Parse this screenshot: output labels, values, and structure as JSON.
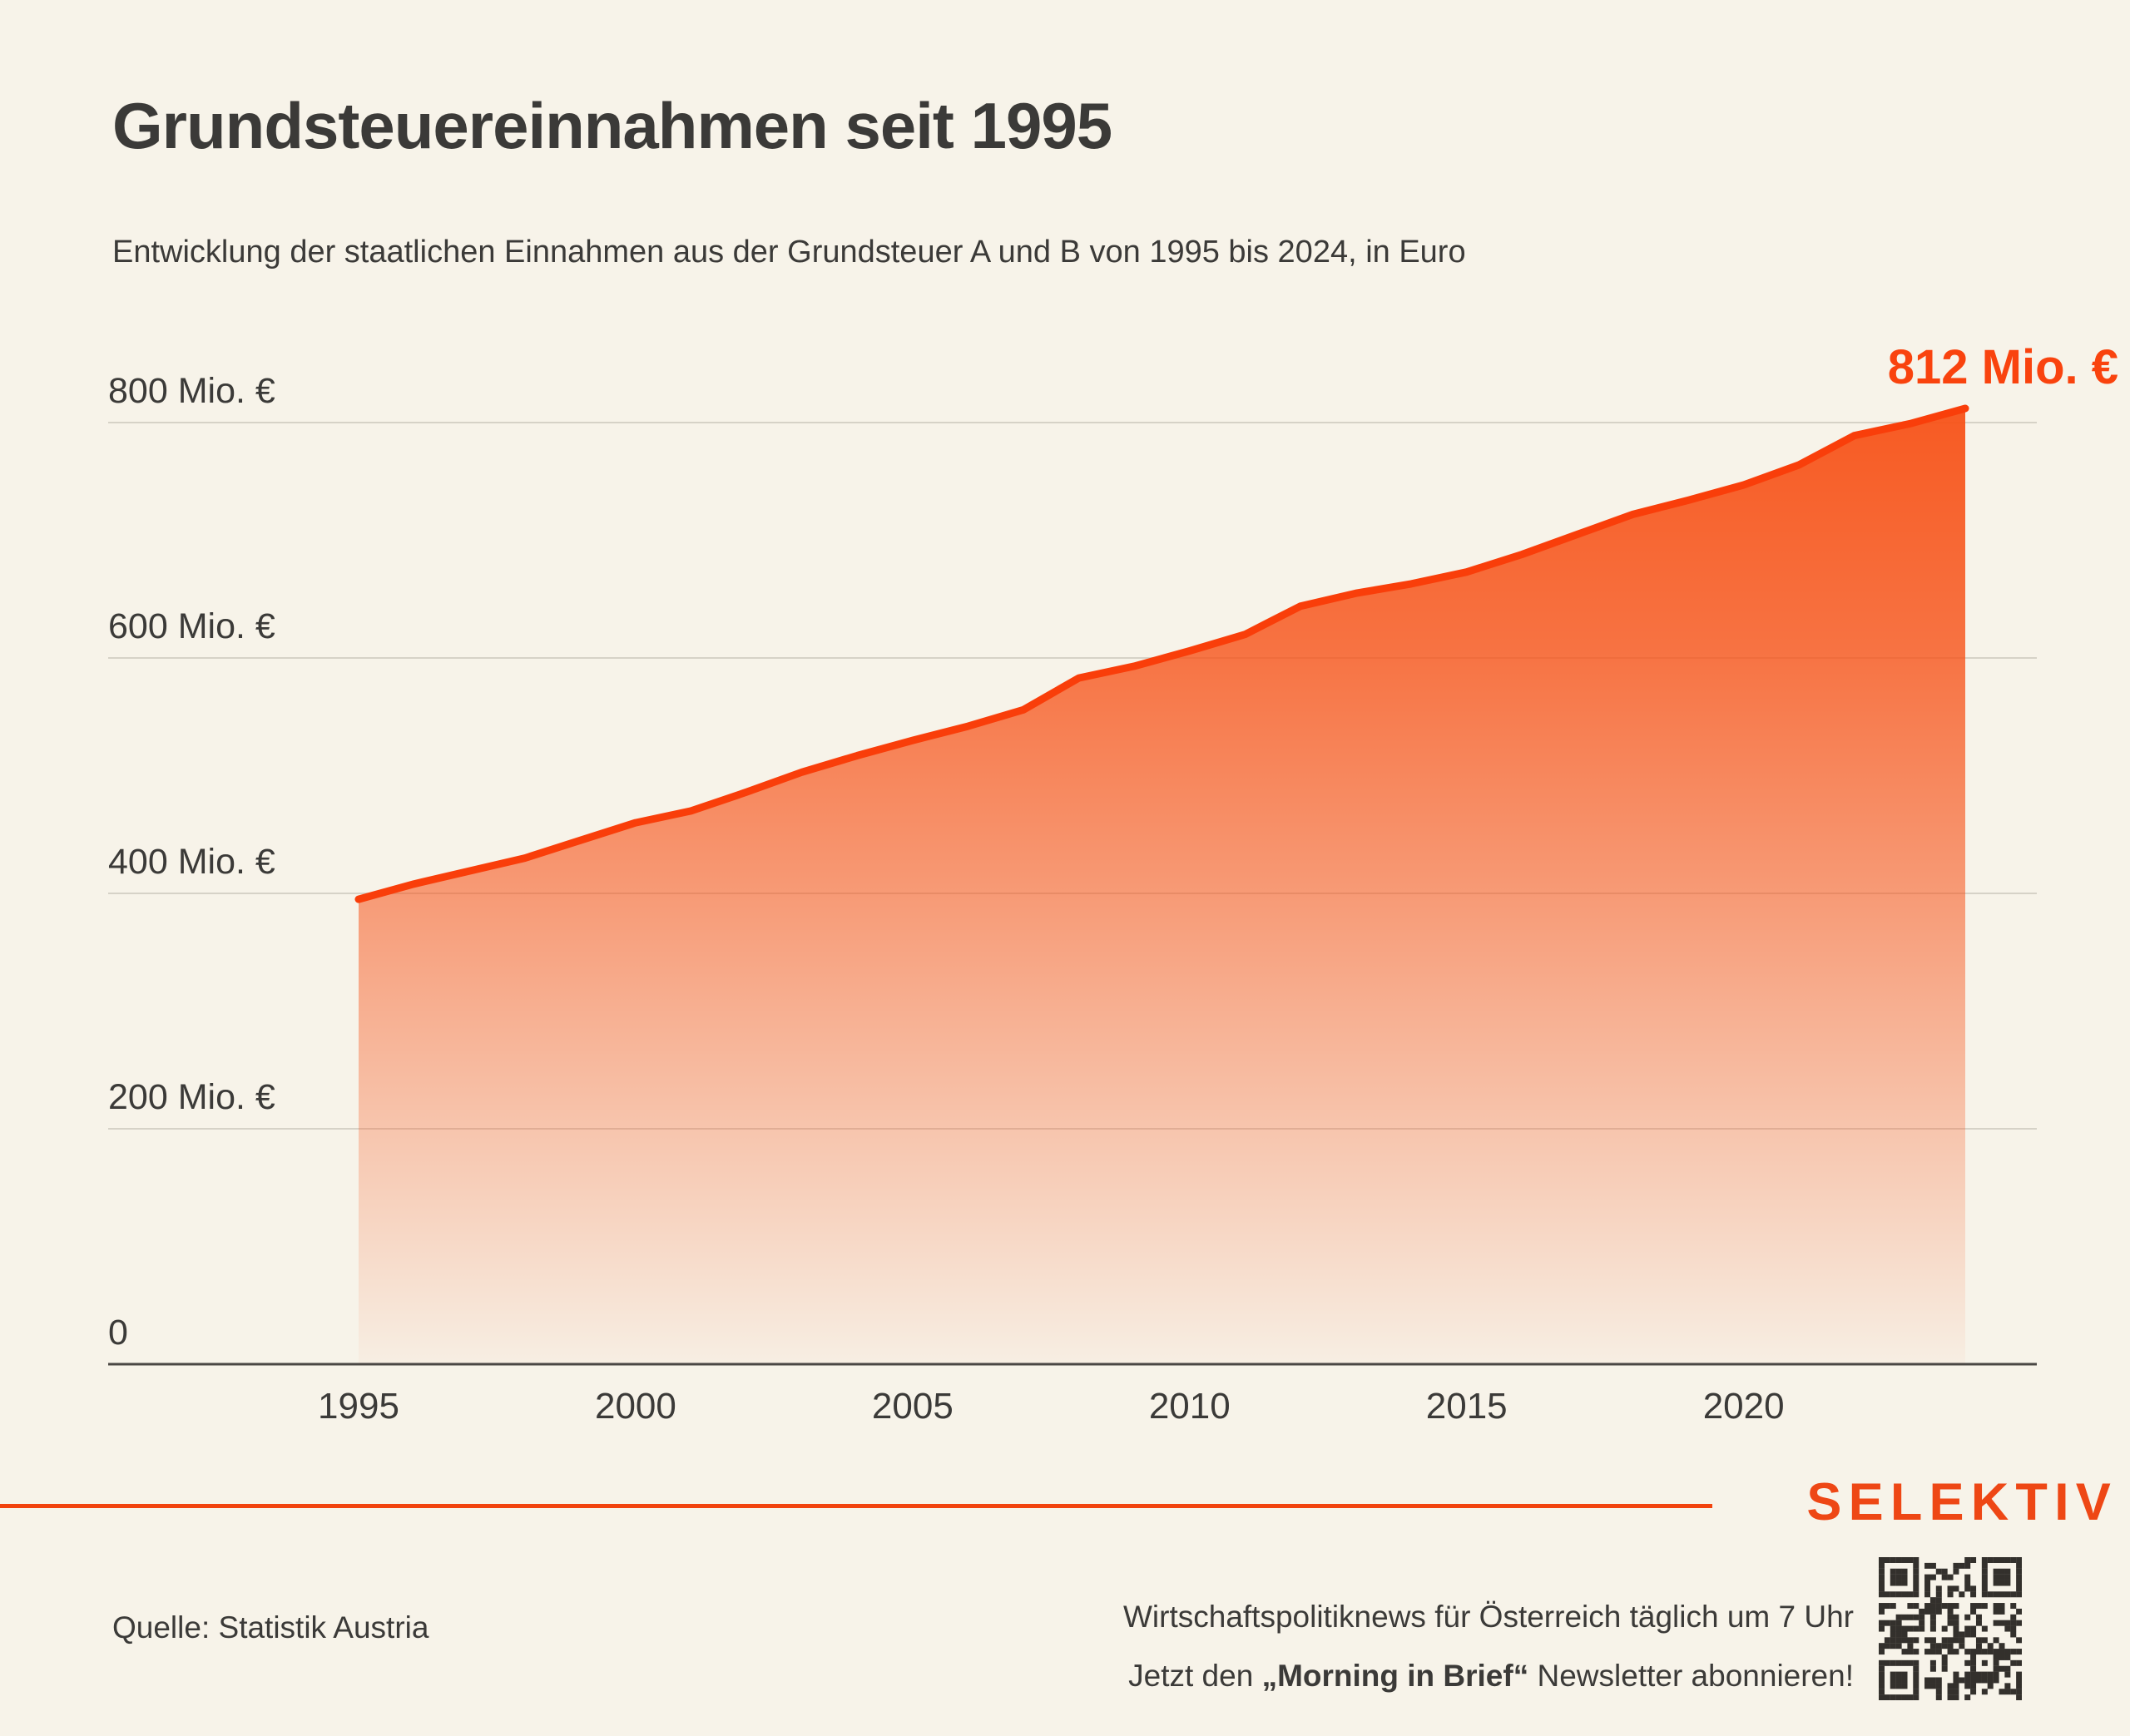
{
  "page": {
    "title": "Grundsteuereinnahmen seit 1995",
    "subtitle": "Entwicklung der staatlichen Einnahmen aus der Grundsteuer A und B von 1995 bis 2024, in Euro"
  },
  "chart_data": {
    "type": "area",
    "title": "Grundsteuereinnahmen seit 1995",
    "unit": "Mio. €",
    "xlim": [
      1995,
      2024
    ],
    "ylim": [
      0,
      800
    ],
    "grid": true,
    "x": [
      1995,
      1996,
      1997,
      1998,
      1999,
      2000,
      2001,
      2002,
      2003,
      2004,
      2005,
      2006,
      2007,
      2008,
      2009,
      2010,
      2011,
      2012,
      2013,
      2014,
      2015,
      2016,
      2017,
      2018,
      2019,
      2020,
      2021,
      2022,
      2023,
      2024
    ],
    "values": [
      395,
      408,
      419,
      430,
      445,
      460,
      470,
      486,
      503,
      517,
      530,
      542,
      556,
      583,
      593,
      606,
      620,
      644,
      655,
      663,
      673,
      688,
      705,
      722,
      734,
      747,
      764,
      789,
      799,
      812
    ],
    "x_ticks": [
      "1995",
      "2000",
      "2005",
      "2010",
      "2015",
      "2020"
    ],
    "y_ticks": [
      {
        "value": 0,
        "label": "0"
      },
      {
        "value": 200,
        "label": "200 Mio. €"
      },
      {
        "value": 400,
        "label": "400 Mio. €"
      },
      {
        "value": 600,
        "label": "600 Mio. €"
      },
      {
        "value": 800,
        "label": "800 Mio. €"
      }
    ],
    "annotation": {
      "label": "812 Mio. €",
      "year": 2024,
      "value": 812
    },
    "colors": {
      "line": "#f93e0a",
      "fill": "#f75218",
      "annotation_text": "#f9430e",
      "gridline": "#d6d2c7",
      "axis": "#4a4744",
      "background": "#f7f3e9"
    }
  },
  "footer": {
    "source": "Quelle: Statistik Austria",
    "newsletter_line1": "Wirtschaftspolitiknews für Österreich täglich um 7 Uhr",
    "newsletter_line2_prefix": "Jetzt den ",
    "newsletter_line2_bold": "„Morning in Brief“",
    "newsletter_line2_suffix": " Newsletter abonnieren!",
    "brand": "SELEKTIV",
    "qr": "qr-code"
  }
}
